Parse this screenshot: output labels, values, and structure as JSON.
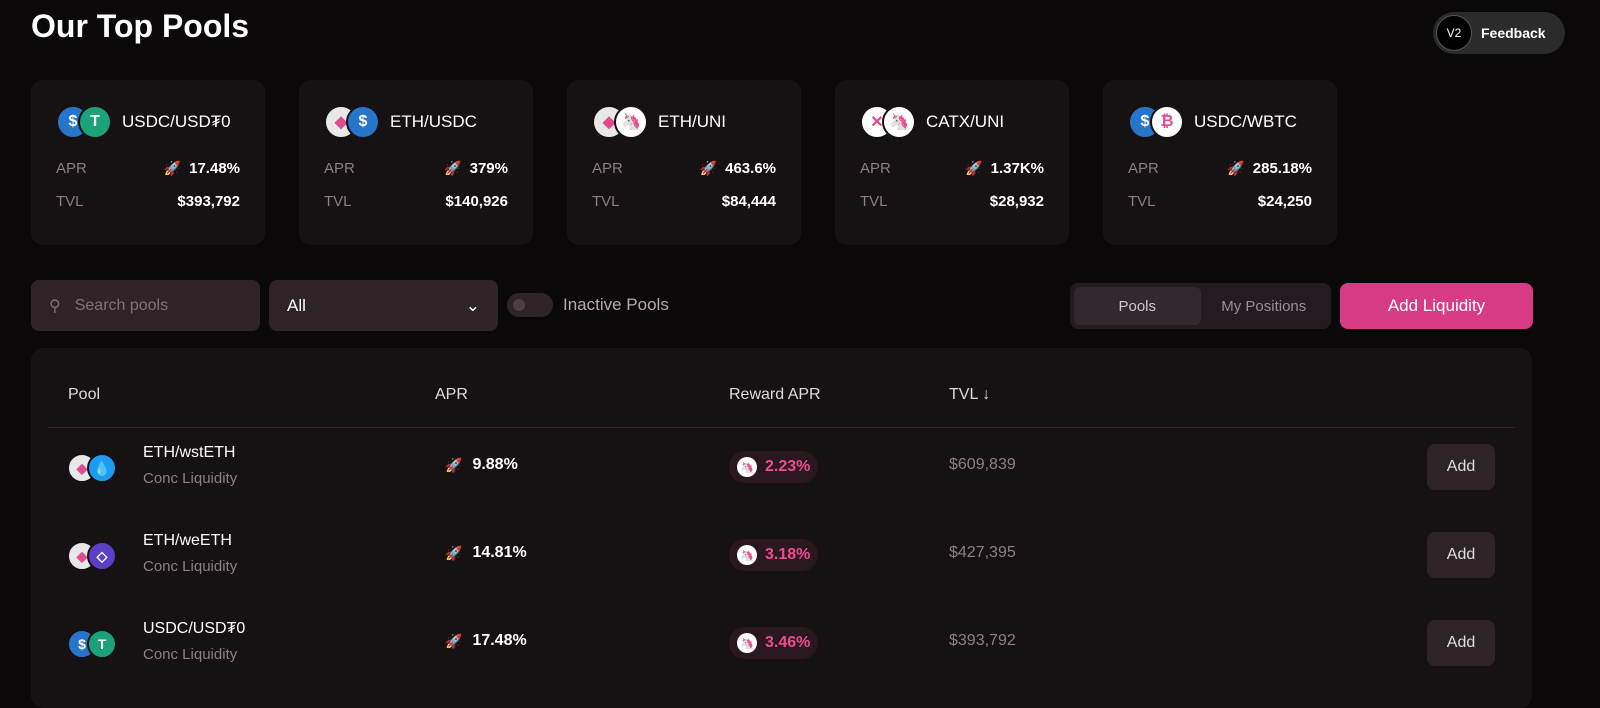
{
  "title": "Our Top Pools",
  "colors": {
    "accent": "#d83b86",
    "reward": "#ee4c95"
  },
  "top_pools": [
    {
      "name": "USDC/USD₮0",
      "apr": "17.48%",
      "tvl": "$393,792",
      "tokens": [
        {
          "sym": "$",
          "bg": "#2775ca"
        },
        {
          "sym": "T",
          "bg": "#1ba27a"
        }
      ]
    },
    {
      "name": "ETH/USDC",
      "apr": "379%",
      "tvl": "$140,926",
      "tokens": [
        {
          "sym": "◆",
          "bg": "#e8e8e8"
        },
        {
          "sym": "$",
          "bg": "#2775ca"
        }
      ]
    },
    {
      "name": "ETH/UNI",
      "apr": "463.6%",
      "tvl": "$84,444",
      "tokens": [
        {
          "sym": "◆",
          "bg": "#e8e8e8"
        },
        {
          "sym": "🦄",
          "bg": "#ffffff"
        }
      ]
    },
    {
      "name": "CATX/UNI",
      "apr": "1.37K%",
      "tvl": "$28,932",
      "tokens": [
        {
          "sym": "✕",
          "bg": "#ffffff"
        },
        {
          "sym": "🦄",
          "bg": "#ffffff"
        }
      ]
    },
    {
      "name": "USDC/WBTC",
      "apr": "285.18%",
      "tvl": "$24,250",
      "tokens": [
        {
          "sym": "$",
          "bg": "#2775ca"
        },
        {
          "sym": "₿",
          "bg": "#ffffff"
        }
      ]
    }
  ],
  "labels": {
    "apr": "APR",
    "tvl": "TVL"
  },
  "controls": {
    "search_placeholder": "Search pools",
    "filter_value": "All",
    "inactive_label": "Inactive Pools",
    "tab_pools": "Pools",
    "tab_positions": "My Positions",
    "add_liquidity": "Add Liquidity"
  },
  "table": {
    "headers": {
      "pool": "Pool",
      "apr": "APR",
      "reward": "Reward APR",
      "tvl": "TVL ↓"
    },
    "rows": [
      {
        "name": "ETH/wstETH",
        "type": "Conc Liquidity",
        "apr": "9.88%",
        "reward": "2.23%",
        "tvl": "$609,839",
        "add": "Add",
        "tokens": [
          {
            "sym": "◆",
            "bg": "#e8e8e8"
          },
          {
            "sym": "💧",
            "bg": "#1c9bf0"
          }
        ]
      },
      {
        "name": "ETH/weETH",
        "type": "Conc Liquidity",
        "apr": "14.81%",
        "reward": "3.18%",
        "tvl": "$427,395",
        "add": "Add",
        "tokens": [
          {
            "sym": "◆",
            "bg": "#e8e8e8"
          },
          {
            "sym": "◇",
            "bg": "#5b3fc4"
          }
        ]
      },
      {
        "name": "USDC/USD₮0",
        "type": "Conc Liquidity",
        "apr": "17.48%",
        "reward": "3.46%",
        "tvl": "$393,792",
        "add": "Add",
        "tokens": [
          {
            "sym": "$",
            "bg": "#2775ca"
          },
          {
            "sym": "T",
            "bg": "#1ba27a"
          }
        ]
      }
    ]
  },
  "feedback": {
    "logo": "V2",
    "label": "Feedback"
  }
}
